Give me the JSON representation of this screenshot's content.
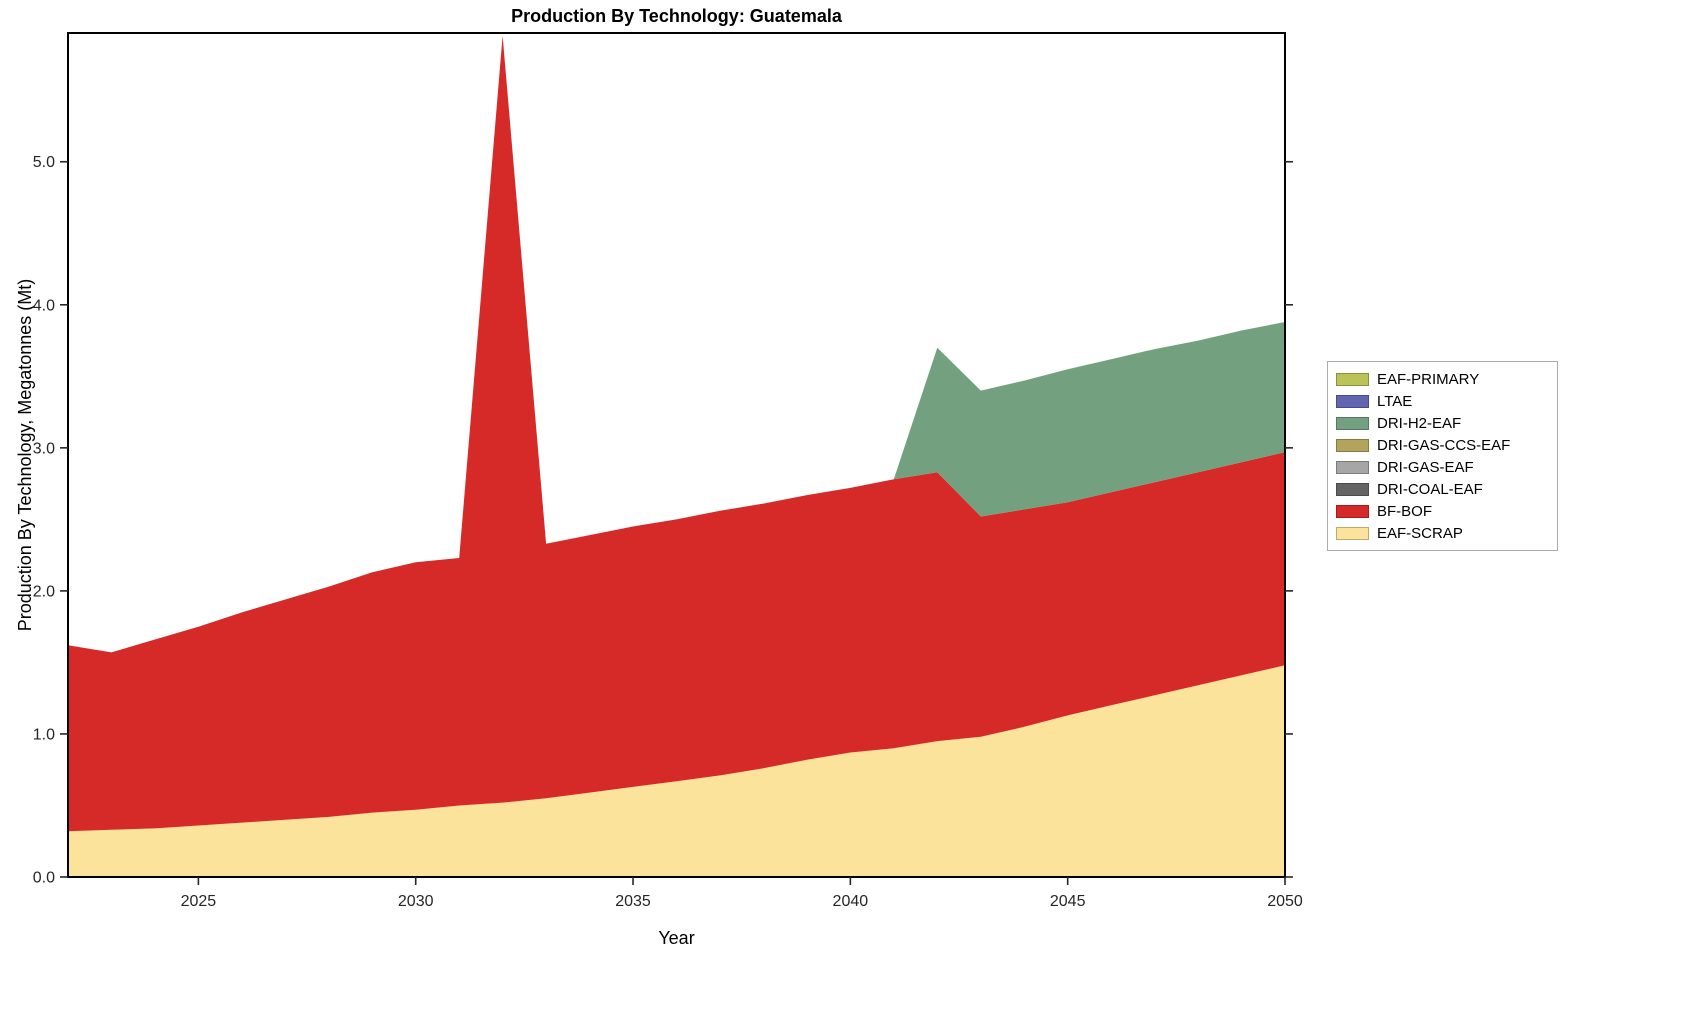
{
  "figure": {
    "background": "#ffffff"
  },
  "chart_data": {
    "type": "area",
    "stacked": true,
    "title": "Production By Technology: Guatemala",
    "xlabel": "Year",
    "ylabel": "Production By Technology, Megatonnes (Mt)",
    "xlim": [
      2022,
      2050
    ],
    "ylim": [
      0,
      5.9
    ],
    "xticks": [
      2025,
      2030,
      2035,
      2040,
      2045,
      2050
    ],
    "yticks": [
      0,
      1,
      2,
      3,
      4,
      5
    ],
    "ytick_labels": [
      "0.0",
      "1.0",
      "2.0",
      "3.0",
      "4.0",
      "5.0"
    ],
    "grid": false,
    "legend_position": "right-outside",
    "axis_color": "#262626",
    "x": [
      2022,
      2023,
      2024,
      2025,
      2026,
      2027,
      2028,
      2029,
      2030,
      2031,
      2032,
      2033,
      2034,
      2035,
      2036,
      2037,
      2038,
      2039,
      2040,
      2041,
      2042,
      2043,
      2044,
      2045,
      2046,
      2047,
      2048,
      2049,
      2050
    ],
    "series": [
      {
        "name": "EAF-SCRAP",
        "color": "#fbe39b",
        "values": [
          0.32,
          0.33,
          0.34,
          0.36,
          0.38,
          0.4,
          0.42,
          0.45,
          0.47,
          0.5,
          0.52,
          0.55,
          0.59,
          0.63,
          0.67,
          0.71,
          0.76,
          0.82,
          0.87,
          0.9,
          0.95,
          0.98,
          1.05,
          1.13,
          1.2,
          1.27,
          1.34,
          1.41,
          1.48
        ]
      },
      {
        "name": "BF-BOF",
        "color": "#d62a28",
        "values": [
          1.3,
          1.24,
          1.32,
          1.39,
          1.47,
          1.54,
          1.61,
          1.68,
          1.73,
          1.73,
          5.36,
          1.78,
          1.8,
          1.82,
          1.83,
          1.85,
          1.85,
          1.85,
          1.85,
          1.88,
          1.88,
          1.54,
          1.52,
          1.49,
          1.49,
          1.49,
          1.49,
          1.49,
          1.49
        ]
      },
      {
        "name": "DRI-COAL-EAF",
        "color": "#646464",
        "values": [
          0,
          0,
          0,
          0,
          0,
          0,
          0,
          0,
          0,
          0,
          0,
          0,
          0,
          0,
          0,
          0,
          0,
          0,
          0,
          0,
          0,
          0,
          0,
          0,
          0,
          0,
          0,
          0,
          0
        ]
      },
      {
        "name": "DRI-GAS-EAF",
        "color": "#a6a6a6",
        "values": [
          0,
          0,
          0,
          0,
          0,
          0,
          0,
          0,
          0,
          0,
          0,
          0,
          0,
          0,
          0,
          0,
          0,
          0,
          0,
          0,
          0,
          0,
          0,
          0,
          0,
          0,
          0,
          0,
          0
        ]
      },
      {
        "name": "DRI-GAS-CCS-EAF",
        "color": "#b2a45c",
        "values": [
          0,
          0,
          0,
          0,
          0,
          0,
          0,
          0,
          0,
          0,
          0,
          0,
          0,
          0,
          0,
          0,
          0,
          0,
          0,
          0,
          0,
          0,
          0,
          0,
          0,
          0,
          0,
          0,
          0
        ]
      },
      {
        "name": "DRI-H2-EAF",
        "color": "#73a17f",
        "values": [
          0,
          0,
          0,
          0,
          0,
          0,
          0,
          0,
          0,
          0,
          0,
          0,
          0,
          0,
          0,
          0,
          0,
          0,
          0,
          0,
          0.87,
          0.88,
          0.9,
          0.93,
          0.93,
          0.93,
          0.92,
          0.92,
          0.91
        ]
      },
      {
        "name": "LTAE",
        "color": "#6265af",
        "values": [
          0,
          0,
          0,
          0,
          0,
          0,
          0,
          0,
          0,
          0,
          0,
          0,
          0,
          0,
          0,
          0,
          0,
          0,
          0,
          0,
          0,
          0,
          0,
          0,
          0,
          0,
          0,
          0,
          0
        ]
      },
      {
        "name": "EAF-PRIMARY",
        "color": "#b9c357",
        "values": [
          0,
          0,
          0,
          0,
          0,
          0,
          0,
          0,
          0,
          0,
          0,
          0,
          0,
          0,
          0,
          0,
          0,
          0,
          0,
          0,
          0,
          0,
          0,
          0,
          0,
          0,
          0,
          0,
          0
        ]
      }
    ],
    "legend_order": [
      "EAF-PRIMARY",
      "LTAE",
      "DRI-H2-EAF",
      "DRI-GAS-CCS-EAF",
      "DRI-GAS-EAF",
      "DRI-COAL-EAF",
      "BF-BOF",
      "EAF-SCRAP"
    ]
  }
}
